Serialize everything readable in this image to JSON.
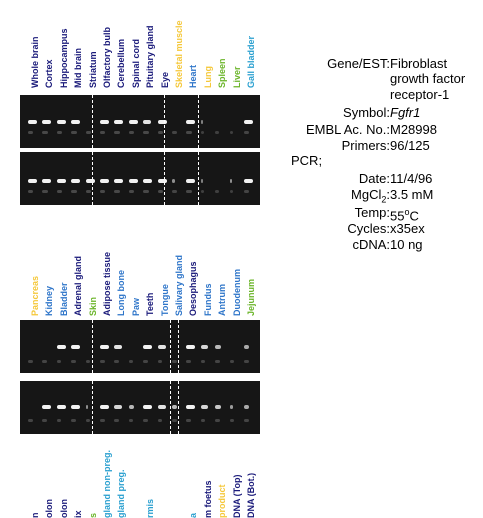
{
  "colors": {
    "navy": "#1a1a7a",
    "blue": "#2e75c9",
    "cyan": "#2aa0d0",
    "green": "#6bb52a",
    "yellow": "#f5c83a"
  },
  "panel1": {
    "lanes": [
      {
        "label": "Whole brain",
        "color": "#1a1a7a"
      },
      {
        "label": "Cortex",
        "color": "#1a1a7a"
      },
      {
        "label": "Hippocampus",
        "color": "#1a1a7a"
      },
      {
        "label": "Mid brain",
        "color": "#1a1a7a"
      },
      {
        "label": "Striatum",
        "color": "#1a1a7a"
      },
      {
        "label": "Olfactory bulb",
        "color": "#1a1a7a"
      },
      {
        "label": "Cerebellum",
        "color": "#1a1a7a"
      },
      {
        "label": "Spinal cord",
        "color": "#1a1a7a"
      },
      {
        "label": "Pituitary gland",
        "color": "#1a1a7a"
      },
      {
        "label": "Eye",
        "color": "#1a1a7a"
      },
      {
        "label": "Skeletal muscle",
        "color": "#f5c83a"
      },
      {
        "label": "Heart",
        "color": "#2e75c9"
      },
      {
        "label": "Lung",
        "color": "#f5c83a"
      },
      {
        "label": "Spleen",
        "color": "#6bb52a"
      },
      {
        "label": "Liver",
        "color": "#6bb52a"
      },
      {
        "label": "Gall bladder",
        "color": "#2aa0d0"
      }
    ]
  },
  "panel2": {
    "lanes": [
      {
        "label": "Pancreas",
        "color": "#f5c83a"
      },
      {
        "label": "Kidney",
        "color": "#2e75c9"
      },
      {
        "label": "Bladder",
        "color": "#2e75c9"
      },
      {
        "label": "Adrenal gland",
        "color": "#1a1a7a"
      },
      {
        "label": "Skin",
        "color": "#6bb52a"
      },
      {
        "label": "Adipose tissue",
        "color": "#1a1a7a"
      },
      {
        "label": "Long bone",
        "color": "#2e75c9"
      },
      {
        "label": "Paw",
        "color": "#2e75c9"
      },
      {
        "label": "Teeth",
        "color": "#1a1a7a"
      },
      {
        "label": "Tongue",
        "color": "#2e75c9"
      },
      {
        "label": "Salivary gland",
        "color": "#2e75c9"
      },
      {
        "label": "Oesophagus",
        "color": "#1a1a7a"
      },
      {
        "label": "Fundus",
        "color": "#2e75c9"
      },
      {
        "label": "Antrum",
        "color": "#2e75c9"
      },
      {
        "label": "Duodenum",
        "color": "#2e75c9"
      },
      {
        "label": "Jejunum",
        "color": "#6bb52a"
      }
    ]
  },
  "panel3": {
    "lanes": [
      {
        "label": "n",
        "color": "#1a1a7a"
      },
      {
        "label": "olon",
        "color": "#1a1a7a"
      },
      {
        "label": "olon",
        "color": "#1a1a7a"
      },
      {
        "label": "ix",
        "color": "#1a1a7a"
      },
      {
        "label": "s",
        "color": "#6bb52a"
      },
      {
        "label": "gland non-preg.",
        "color": "#2aa0d0"
      },
      {
        "label": "gland preg.",
        "color": "#2aa0d0"
      },
      {
        "label": "",
        "color": "#2aa0d0"
      },
      {
        "label": "rmis",
        "color": "#2aa0d0"
      },
      {
        "label": "",
        "color": "#2aa0d0"
      },
      {
        "label": "",
        "color": "#2aa0d0"
      },
      {
        "label": "a",
        "color": "#2aa0d0"
      },
      {
        "label": "m foetus",
        "color": "#1a1a7a"
      },
      {
        "label": "product",
        "color": "#f5c83a"
      },
      {
        "label": "DNA (Top)",
        "color": "#1a1a7a"
      },
      {
        "label": "DNA (Bot.)",
        "color": "#1a1a7a"
      }
    ]
  },
  "info": {
    "gene_label": "Gene/EST:",
    "gene_line1": "Fibroblast",
    "gene_line2": "growth factor",
    "gene_line3": "receptor-1",
    "symbol_label": "Symbol:",
    "symbol_value": "Fgfr1",
    "embl_label": "EMBL Ac. No.:",
    "embl_value": "M28998",
    "primers_label": "Primers:",
    "primers_value": "96/125",
    "pcr_label": "PCR;",
    "date_label": "Date:",
    "date_value": "11/4/96",
    "mgcl_label": "MgCl",
    "mgcl_sub": "2",
    "mgcl_colon": ":",
    "mgcl_value": "3.5 mM",
    "temp_label": "Temp:",
    "temp_value": "55",
    "temp_sup": "o",
    "temp_unit": "C",
    "cycles_label": "Cycles:",
    "cycles_value": "x35ex",
    "cdna_label": "cDNA:",
    "cdna_value": "10 ng"
  }
}
